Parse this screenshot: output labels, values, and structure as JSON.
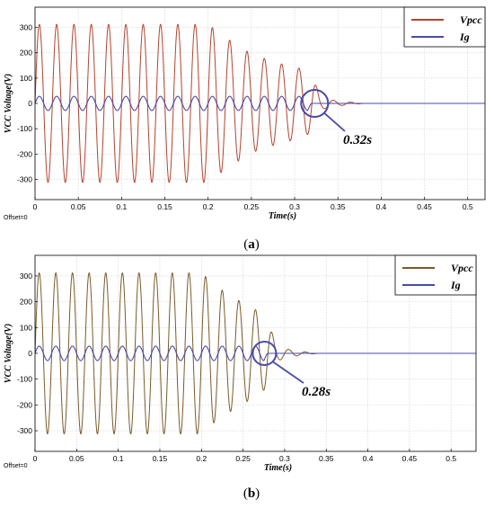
{
  "chart_data": [
    {
      "panel": "(a)",
      "panel_letter": "a",
      "type": "line",
      "xlabel": "Time(s)",
      "ylabel": "VCC Voltage(V)",
      "offset_label": "Offset=0",
      "xlim": [
        0,
        0.52
      ],
      "ylim": [
        -380,
        380
      ],
      "xticks": [
        0,
        0.05,
        0.1,
        0.15,
        0.2,
        0.25,
        0.3,
        0.35,
        0.4,
        0.45,
        0.5
      ],
      "xtick_labels": [
        "0",
        "0.05",
        "0.1",
        "0.15",
        "0.2",
        "0.25",
        "0.3",
        "0.35",
        "0.4",
        "0.45",
        "0.5"
      ],
      "yticks": [
        -300,
        -200,
        -100,
        0,
        100,
        200,
        300
      ],
      "frequency_hz": 50,
      "legend_position": "top-right",
      "series": [
        {
          "name": "Vpcc",
          "color": "#b5432e",
          "amplitude_envelope": {
            "t": [
              0,
              0.2,
              0.22,
              0.25,
              0.28,
              0.31,
              0.32,
              0.33,
              0.345,
              0.36,
              0.38,
              0.52
            ],
            "a": [
              312,
              312,
              260,
              195,
              160,
              135,
              110,
              25,
              12,
              6,
              0,
              0
            ]
          }
        },
        {
          "name": "Ig",
          "color": "#4a4aa8",
          "amplitude_envelope": {
            "t": [
              0,
              0.3,
              0.315,
              0.32,
              0.52
            ],
            "a": [
              28,
              28,
              28,
              0,
              0
            ]
          }
        }
      ],
      "annotation": {
        "text": "0.32s",
        "at_x": 0.32,
        "at_y": 0
      }
    },
    {
      "panel": "(b)",
      "panel_letter": "b",
      "type": "line",
      "xlabel": "Time(s)",
      "ylabel": "VCC Voltage(V)",
      "offset_label": "Offset=0",
      "xlim": [
        0,
        0.53
      ],
      "ylim": [
        -380,
        380
      ],
      "xticks": [
        0,
        0.05,
        0.1,
        0.15,
        0.2,
        0.25,
        0.3,
        0.35,
        0.4,
        0.45,
        0.5
      ],
      "xtick_labels": [
        "0",
        "0.05",
        "0.1",
        "0.15",
        "0.2",
        "0.25",
        "0.3",
        "0.35",
        "0.4",
        "0.45",
        "0.5"
      ],
      "yticks": [
        -300,
        -200,
        -100,
        0,
        100,
        200,
        300
      ],
      "frequency_hz": 50,
      "legend_position": "top-right",
      "series": [
        {
          "name": "Vpcc",
          "color": "#7a5a2a",
          "amplitude_envelope": {
            "t": [
              0,
              0.2,
              0.22,
              0.25,
              0.27,
              0.28,
              0.29,
              0.305,
              0.32,
              0.34,
              0.53
            ],
            "a": [
              312,
              312,
              255,
              195,
              160,
              125,
              30,
              15,
              7,
              0,
              0
            ]
          }
        },
        {
          "name": "Ig",
          "color": "#4a4aa8",
          "amplitude_envelope": {
            "t": [
              0,
              0.265,
              0.275,
              0.28,
              0.53
            ],
            "a": [
              28,
              28,
              28,
              0,
              0
            ]
          }
        }
      ],
      "annotation": {
        "text": "0.28s",
        "at_x": 0.28,
        "at_y": 0
      }
    }
  ]
}
